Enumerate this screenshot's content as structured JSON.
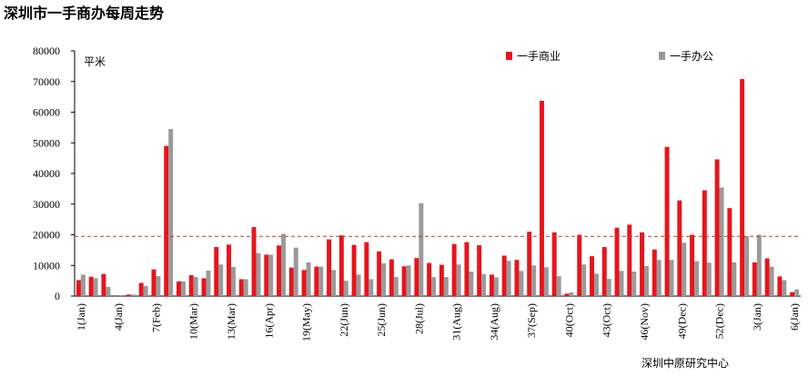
{
  "chart_data": {
    "type": "bar",
    "title": "深圳市一手商办每周走势",
    "y_label": "平米",
    "source": "深圳中原研究中心",
    "categories": [
      "1(Jan)",
      null,
      null,
      "4(Jan)",
      null,
      null,
      "7(Feb)",
      null,
      null,
      "10(Mar)",
      null,
      null,
      "13(Mar)",
      null,
      null,
      "16(Apr)",
      null,
      null,
      "19(May)",
      null,
      null,
      "22(Jun)",
      null,
      null,
      "25(Jun)",
      null,
      null,
      "28(Jul)",
      null,
      null,
      "31(Aug)",
      null,
      null,
      "34(Aug)",
      null,
      null,
      "37(Sep)",
      null,
      null,
      "40(Oct)",
      null,
      null,
      "43(Oct)",
      null,
      null,
      "46(Nov)",
      null,
      null,
      "49(Dec)",
      null,
      null,
      "52(Dec)",
      null,
      null,
      "3(Jan)",
      null,
      null,
      "6(Jan)"
    ],
    "series": [
      {
        "name": "一手商业",
        "color": "#e8141b",
        "values": [
          5200,
          6300,
          7200,
          0,
          500,
          4300,
          8700,
          49000,
          4800,
          6800,
          5800,
          16000,
          16800,
          5500,
          22500,
          13500,
          16500,
          9300,
          8500,
          9600,
          18500,
          19800,
          16700,
          17600,
          14600,
          12000,
          9700,
          12400,
          10800,
          10200,
          17000,
          17600,
          16600,
          7000,
          13200,
          11800,
          21000,
          63700,
          20800,
          800,
          20000,
          13000,
          16000,
          22300,
          23300,
          20800,
          15200,
          48700,
          31200,
          20000,
          34500,
          44600,
          28700,
          70800,
          11000,
          12300,
          6400,
          1300
        ]
      },
      {
        "name": "一手办公",
        "color": "#9a9a9a",
        "values": [
          7000,
          5800,
          3000,
          300,
          500,
          3300,
          6500,
          54500,
          4800,
          6200,
          8300,
          10300,
          9500,
          5500,
          14000,
          13500,
          20300,
          15800,
          11000,
          9600,
          8500,
          5000,
          7000,
          5500,
          10700,
          6200,
          10000,
          30300,
          6200,
          6200,
          10300,
          8000,
          7200,
          6100,
          11500,
          8200,
          10000,
          9400,
          6500,
          1200,
          10300,
          7300,
          5600,
          8200,
          8000,
          9800,
          11800,
          11800,
          17400,
          11400,
          10900,
          35400,
          11000,
          19500,
          20000,
          9600,
          5200,
          2200
        ]
      }
    ],
    "reference_line": {
      "value": 19500,
      "color": "#c0392b"
    },
    "ylim": [
      0,
      80000
    ],
    "yticks": [
      0,
      10000,
      20000,
      30000,
      40000,
      50000,
      60000,
      70000,
      80000
    ],
    "grid": false,
    "legend": "top-right"
  }
}
